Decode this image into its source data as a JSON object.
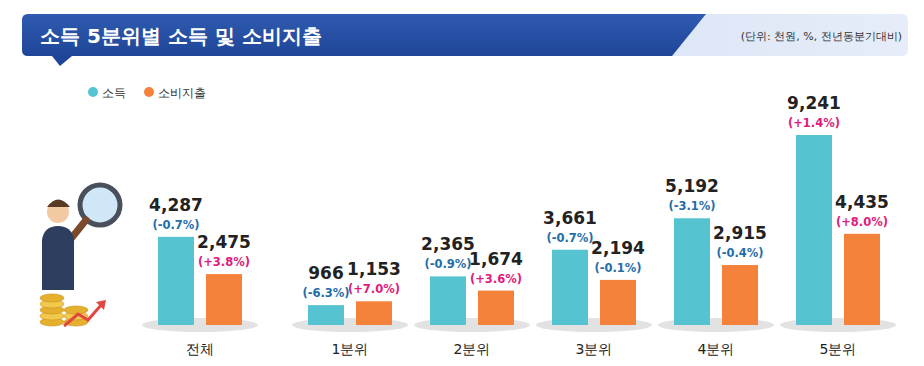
{
  "chart_data": {
    "type": "bar",
    "title": "소득 5분위별 소득 및 소비지출",
    "subtitle": "(단위: 천원, %, 전년동분기대비)",
    "categories": [
      "전체",
      "1분위",
      "2분위",
      "3분위",
      "4분위",
      "5분위"
    ],
    "series": [
      {
        "name": "소득",
        "color": "#56c3d0",
        "values": [
          4287,
          966,
          2365,
          3661,
          5192,
          9241
        ],
        "value_labels": [
          "4,287",
          "966",
          "2,365",
          "3,661",
          "5,192",
          "9,241"
        ],
        "changes": [
          -0.7,
          -6.3,
          -0.9,
          -0.7,
          -3.1,
          1.4
        ],
        "change_labels": [
          "(-0.7%)",
          "(-6.3%)",
          "(-0.9%)",
          "(-0.7%)",
          "(-3.1%)",
          "(+1.4%)"
        ]
      },
      {
        "name": "소비지출",
        "color": "#f4823a",
        "values": [
          2475,
          1153,
          1674,
          2194,
          2915,
          4435
        ],
        "value_labels": [
          "2,475",
          "1,153",
          "1,674",
          "2,194",
          "2,915",
          "4,435"
        ],
        "changes": [
          3.8,
          7.0,
          3.6,
          -0.1,
          -0.4,
          8.0
        ],
        "change_labels": [
          "(+3.8%)",
          "(+7.0%)",
          "(+3.6%)",
          "(-0.1%)",
          "(-0.4%)",
          "(+8.0%)"
        ]
      }
    ],
    "ylim": [
      0,
      10000
    ],
    "tick_labels": false,
    "data_labels": true,
    "legend": "top-left",
    "grid": false
  }
}
